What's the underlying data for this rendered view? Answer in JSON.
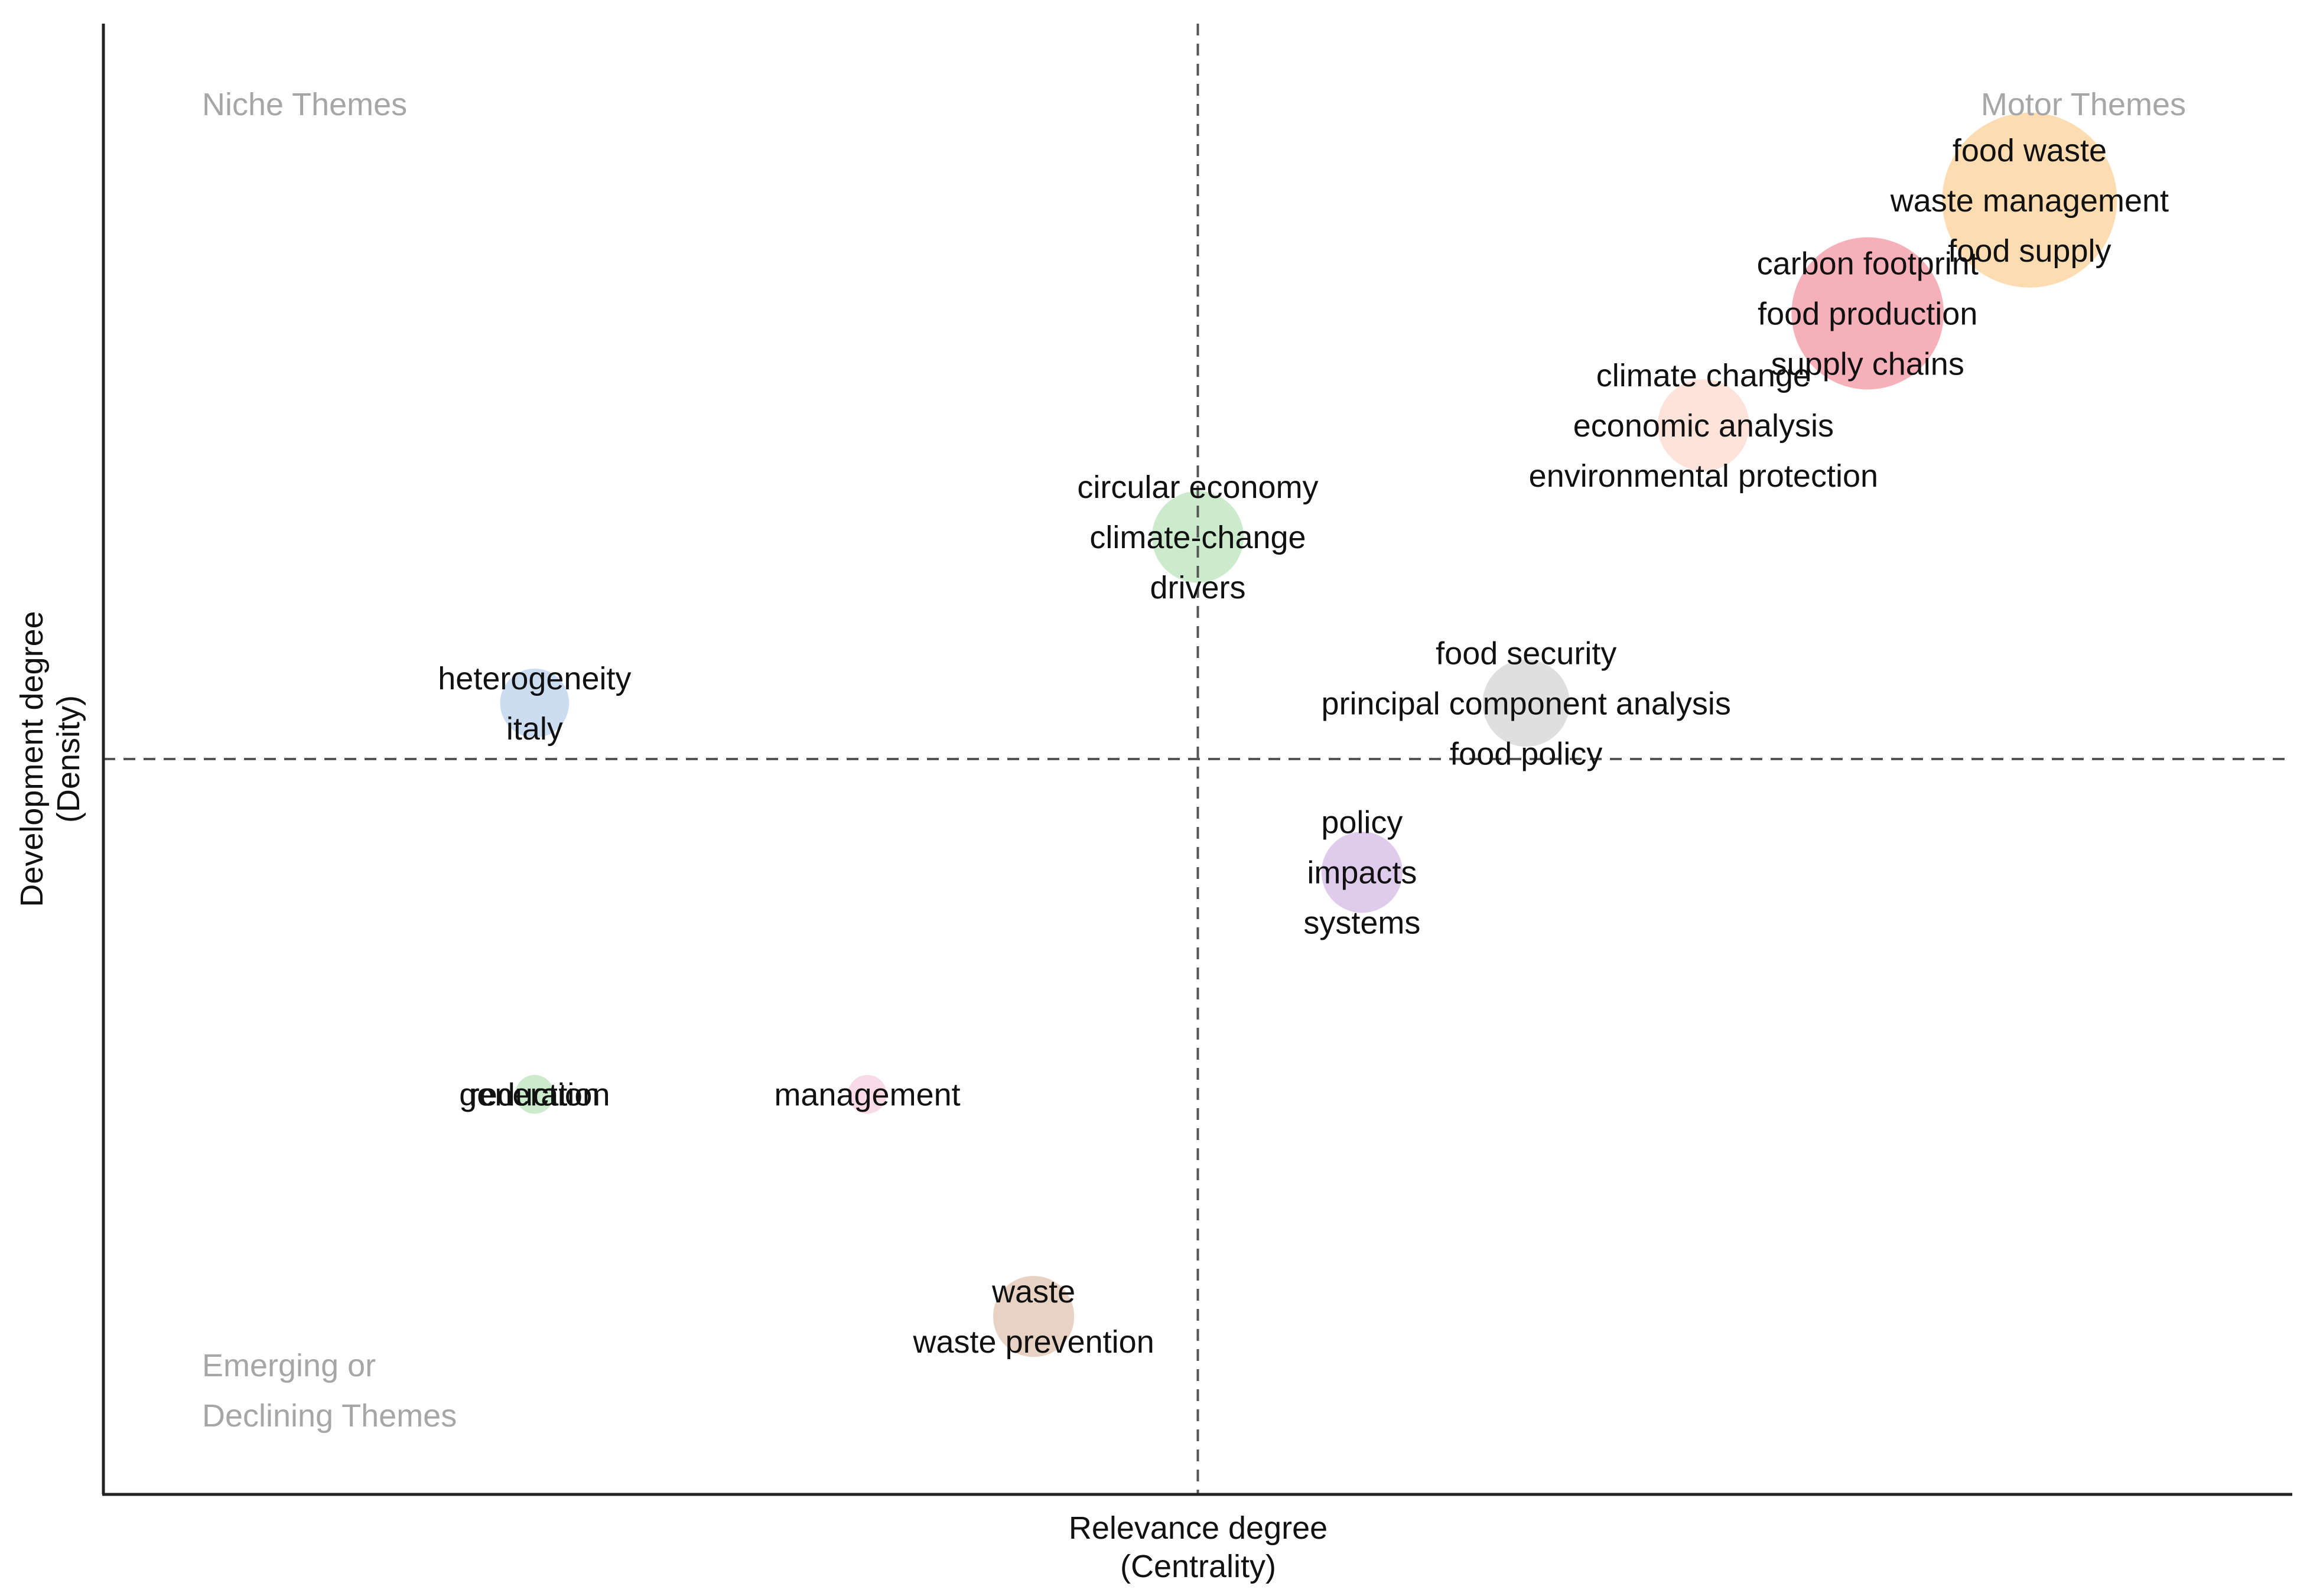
{
  "chart_data": {
    "type": "scatter",
    "title": "",
    "xlabel": [
      "Relevance degree",
      "(Centrality)"
    ],
    "ylabel": [
      "Development degree",
      "(Density)"
    ],
    "xlim": [
      0,
      1
    ],
    "ylim": [
      0,
      1
    ],
    "x_divider": 0.5,
    "y_divider": 0.5,
    "grid": false,
    "quadrant_labels": {
      "top_left": [
        "Niche Themes"
      ],
      "top_right": [
        "Motor Themes"
      ],
      "bottom_left": [
        "Emerging or",
        "Declining Themes"
      ]
    },
    "points": [
      {
        "cluster": "food waste",
        "x": 0.88,
        "y": 0.88,
        "size": 1.0,
        "color": "#fdd8a8",
        "labels": [
          "food waste",
          "waste management",
          "food supply"
        ]
      },
      {
        "cluster": "carbon footprint",
        "x": 0.806,
        "y": 0.803,
        "size": 0.85,
        "color": "#f4a7b1",
        "labels": [
          "carbon footprint",
          "food production",
          "supply chains"
        ]
      },
      {
        "cluster": "climate change",
        "x": 0.731,
        "y": 0.727,
        "size": 0.45,
        "color": "#fde0d6",
        "labels": [
          "climate change",
          "economic analysis",
          "environmental protection"
        ]
      },
      {
        "cluster": "circular economy",
        "x": 0.5,
        "y": 0.651,
        "size": 0.45,
        "color": "#c6e9c6",
        "labels": [
          "circular economy",
          "climate-change",
          "drivers"
        ]
      },
      {
        "cluster": "food security",
        "x": 0.65,
        "y": 0.538,
        "size": 0.42,
        "color": "#dcdcdc",
        "labels": [
          "food security",
          "principal component analysis",
          "food policy"
        ]
      },
      {
        "cluster": "heterogeneity",
        "x": 0.197,
        "y": 0.538,
        "size": 0.3,
        "color": "#c8d9f0",
        "labels": [
          "heterogeneity",
          "italy"
        ]
      },
      {
        "cluster": "policy",
        "x": 0.575,
        "y": 0.423,
        "size": 0.38,
        "color": "#dcc5ea",
        "labels": [
          "policy",
          "impacts",
          "systems"
        ]
      },
      {
        "cluster": "generation",
        "x": 0.197,
        "y": 0.272,
        "size": 0.1,
        "color": "#c6e9c6",
        "labels": [
          "generation",
          "reduction"
        ]
      },
      {
        "cluster": "management",
        "x": 0.349,
        "y": 0.272,
        "size": 0.1,
        "color": "#f8d7e4",
        "labels": [
          "management"
        ]
      },
      {
        "cluster": "waste",
        "x": 0.425,
        "y": 0.121,
        "size": 0.38,
        "color": "#e4cdbd",
        "labels": [
          "waste",
          "waste prevention"
        ]
      }
    ]
  }
}
